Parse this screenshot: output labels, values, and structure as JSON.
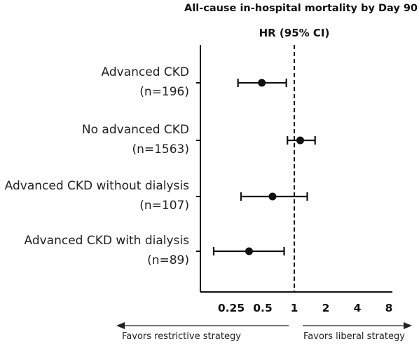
{
  "chart_data": {
    "type": "forest",
    "title": "All-cause in-hospital mortality by Day 90",
    "subtitle": "HR (95% CI)",
    "x_scale": "log2",
    "xlim": [
      0.125,
      8
    ],
    "ticks": [
      {
        "value": 0.25,
        "label": "0.25"
      },
      {
        "value": 0.5,
        "label": "0.5"
      },
      {
        "value": 1,
        "label": "1"
      },
      {
        "value": 2,
        "label": "2"
      },
      {
        "value": 4,
        "label": "4"
      },
      {
        "value": 8,
        "label": "8"
      }
    ],
    "reference_line": 1,
    "rows": [
      {
        "label": "Advanced CKD",
        "n_label": "(n=196)",
        "hr": 0.49,
        "lo": 0.29,
        "hi": 0.84
      },
      {
        "label": "No advanced CKD",
        "n_label": "(n=1563)",
        "hr": 1.14,
        "lo": 0.86,
        "hi": 1.58
      },
      {
        "label": "Advanced CKD without dialysis",
        "n_label": "(n=107)",
        "hr": 0.62,
        "lo": 0.31,
        "hi": 1.33
      },
      {
        "label": "Advanced CKD with dialysis",
        "n_label": "(n=89)",
        "hr": 0.37,
        "lo": 0.17,
        "hi": 0.8
      }
    ],
    "left_direction": "Favors restrictive strategy",
    "right_direction": "Favors liberal strategy",
    "grid": false
  }
}
